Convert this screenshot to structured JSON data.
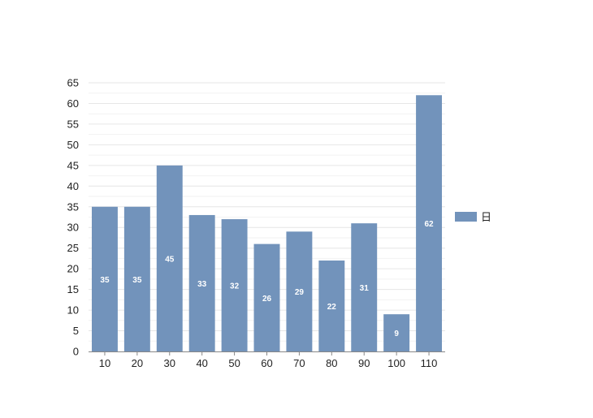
{
  "chart_data": {
    "type": "bar",
    "categories": [
      "10",
      "20",
      "30",
      "40",
      "50",
      "60",
      "70",
      "80",
      "90",
      "100",
      "110"
    ],
    "series": [
      {
        "name": "日",
        "values": [
          35,
          35,
          45,
          33,
          32,
          26,
          29,
          22,
          31,
          9,
          62
        ],
        "color": "#7293bb"
      }
    ],
    "ylim": [
      0,
      65
    ],
    "yticks": [
      0,
      5,
      10,
      15,
      20,
      25,
      30,
      35,
      40,
      45,
      50,
      55,
      60,
      65
    ],
    "grid": true,
    "data_labels": true,
    "legend_position": "right",
    "colors": {
      "bar": "#7293bb",
      "grid": "#e6e6e6",
      "axis": "#888888"
    }
  }
}
